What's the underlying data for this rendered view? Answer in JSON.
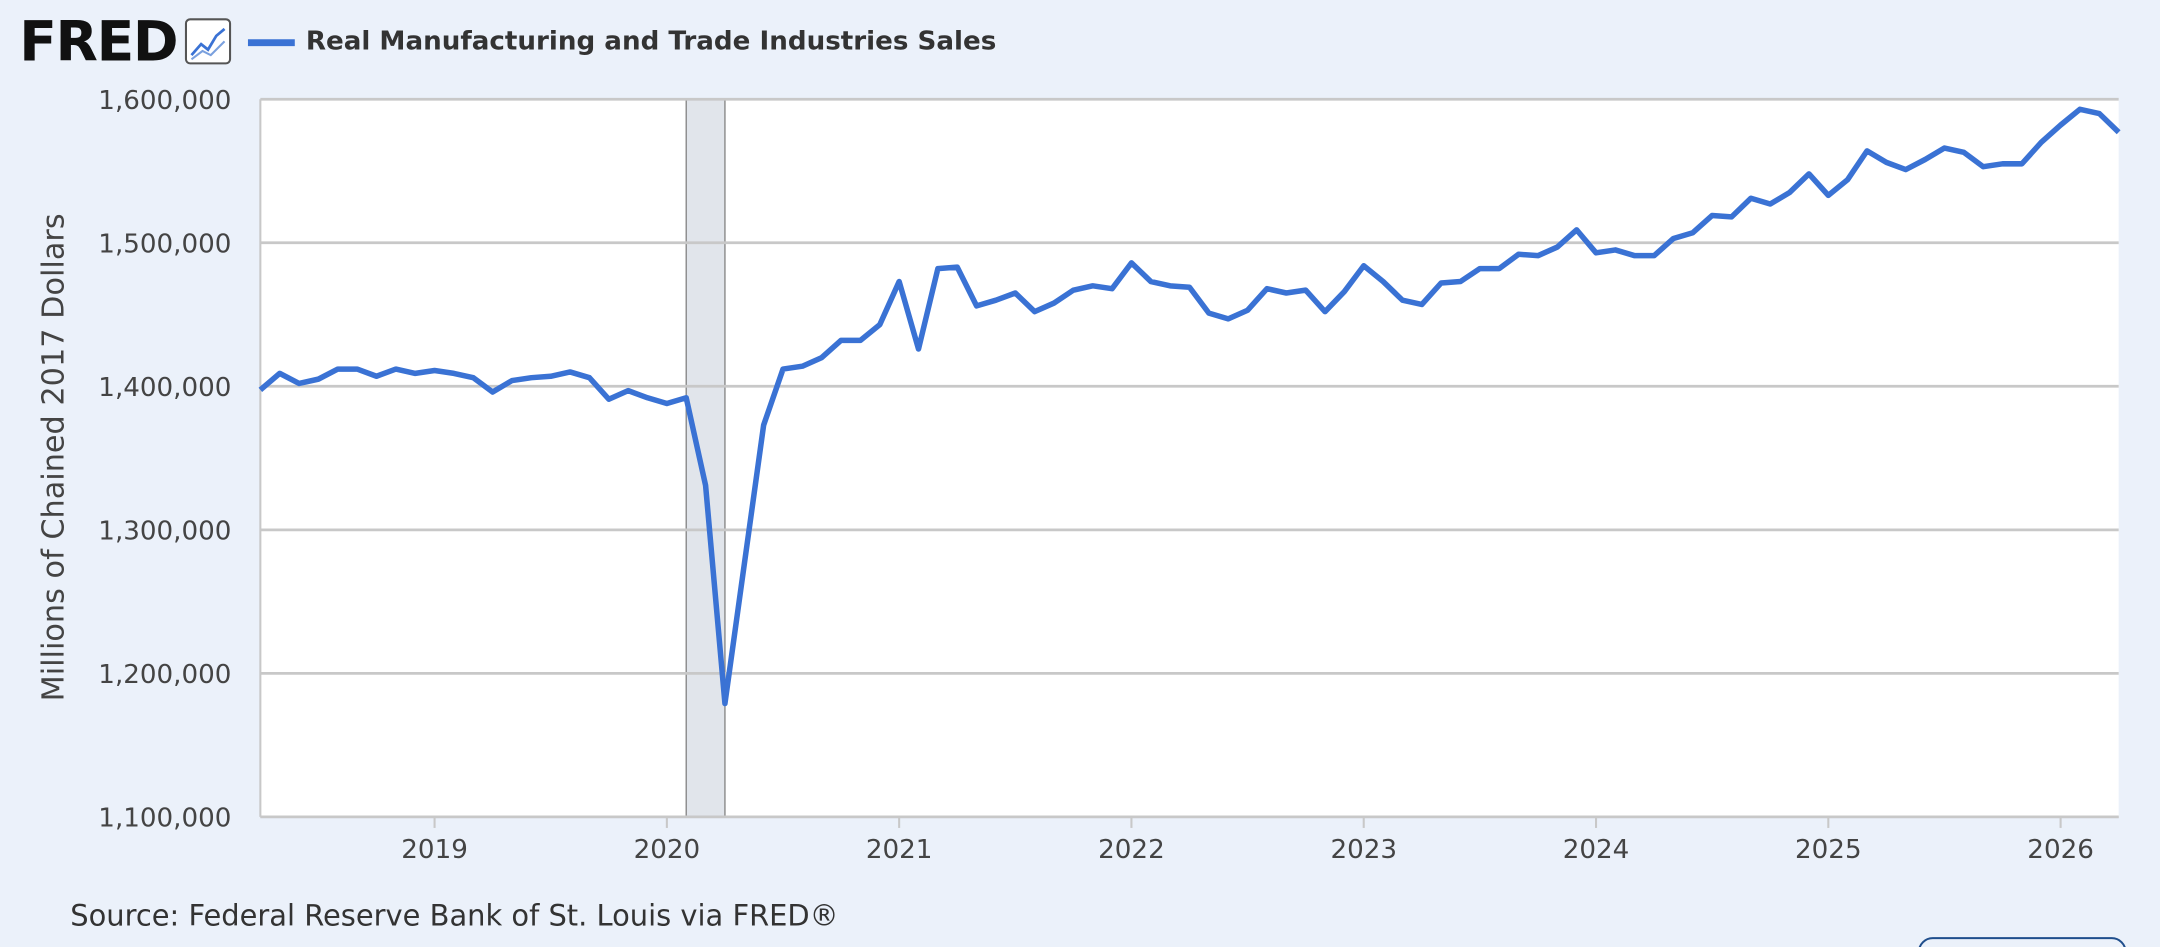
{
  "logo": "FRED",
  "chart_data": {
    "type": "line",
    "y_label": "Millions of Chained 2017 Dollars",
    "source": "Source: Federal Reserve Bank of St. Louis via FRED®",
    "x": [
      "2018-04",
      "2018-05",
      "2018-06",
      "2018-07",
      "2018-08",
      "2018-09",
      "2018-10",
      "2018-11",
      "2018-12",
      "2019-01",
      "2019-02",
      "2019-03",
      "2019-04",
      "2019-05",
      "2019-06",
      "2019-07",
      "2019-08",
      "2019-09",
      "2019-10",
      "2019-11",
      "2019-12",
      "2020-01",
      "2020-02",
      "2020-03",
      "2020-04",
      "2020-05",
      "2020-06",
      "2020-07",
      "2020-08",
      "2020-09",
      "2020-10",
      "2020-11",
      "2020-12",
      "2021-01",
      "2021-02",
      "2021-03",
      "2021-04",
      "2021-05",
      "2021-06",
      "2021-07",
      "2021-08",
      "2021-09",
      "2021-10",
      "2021-11",
      "2021-12",
      "2022-01",
      "2022-02",
      "2022-03",
      "2022-04",
      "2022-05",
      "2022-06",
      "2022-07",
      "2022-08",
      "2022-09",
      "2022-10",
      "2022-11",
      "2022-12",
      "2023-01",
      "2023-02",
      "2023-03",
      "2023-04",
      "2023-05",
      "2023-06",
      "2023-07",
      "2023-08",
      "2023-09",
      "2023-10",
      "2023-11",
      "2023-12",
      "2024-01",
      "2024-02",
      "2024-03",
      "2024-04",
      "2024-05",
      "2024-06",
      "2024-07",
      "2024-08",
      "2024-09",
      "2024-10",
      "2024-11",
      "2024-12",
      "2025-01",
      "2025-02",
      "2025-03",
      "2025-04",
      "2025-05",
      "2025-06",
      "2025-07",
      "2025-08",
      "2025-09",
      "2025-10",
      "2025-11",
      "2025-12",
      "2026-01",
      "2026-02",
      "2026-03",
      "2026-04"
    ],
    "series": [
      {
        "name": "Real Manufacturing and Trade Industries Sales",
        "color": "#3a72d4",
        "values": [
          1397500,
          1409000,
          1402000,
          1405000,
          1412000,
          1412000,
          1407000,
          1412000,
          1409000,
          1411000,
          1409000,
          1406000,
          1396000,
          1404000,
          1406000,
          1407000,
          1410000,
          1406000,
          1391000,
          1397000,
          1392000,
          1388000,
          1392000,
          1331000,
          1179000,
          1276000,
          1373000,
          1412000,
          1414000,
          1420000,
          1432000,
          1432000,
          1443000,
          1473000,
          1426000,
          1482000,
          1483000,
          1456000,
          1460000,
          1465000,
          1452000,
          1458000,
          1467000,
          1470000,
          1468000,
          1486000,
          1473000,
          1470000,
          1469000,
          1451000,
          1447000,
          1453000,
          1468000,
          1465000,
          1467000,
          1452000,
          1466000,
          1484000,
          1473000,
          1460000,
          1457000,
          1472000,
          1473000,
          1482000,
          1482000,
          1492000,
          1491000,
          1497000,
          1509000,
          1493000,
          1495000,
          1491000,
          1491000,
          1503000,
          1507000,
          1519000,
          1518000,
          1531000,
          1527000,
          1535000,
          1548000,
          1533000,
          1544000,
          1564000,
          1556000,
          1551000,
          1558000,
          1566000,
          1563000,
          1553000,
          1555000,
          1555000,
          1570000,
          1582000,
          1593000,
          1590000,
          1577000
        ]
      }
    ],
    "xlim": [
      "2018-04",
      "2026-04"
    ],
    "xticks": [
      {
        "value": "2019-01",
        "label": "2019"
      },
      {
        "value": "2020-01",
        "label": "2020"
      },
      {
        "value": "2021-01",
        "label": "2021"
      },
      {
        "value": "2022-01",
        "label": "2022"
      },
      {
        "value": "2023-01",
        "label": "2023"
      },
      {
        "value": "2024-01",
        "label": "2024"
      },
      {
        "value": "2025-01",
        "label": "2025"
      },
      {
        "value": "2026-01",
        "label": "2026"
      }
    ],
    "ylim": [
      1100000,
      1600000
    ],
    "yticks": [
      {
        "value": 1100000,
        "label": "1,100,000"
      },
      {
        "value": 1200000,
        "label": "1,200,000"
      },
      {
        "value": 1300000,
        "label": "1,300,000"
      },
      {
        "value": 1400000,
        "label": "1,400,000"
      },
      {
        "value": 1500000,
        "label": "1,500,000"
      },
      {
        "value": 1600000,
        "label": "1,600,000"
      }
    ],
    "recessions": [
      {
        "start": "2020-02",
        "end": "2020-04"
      }
    ],
    "grid": true
  }
}
